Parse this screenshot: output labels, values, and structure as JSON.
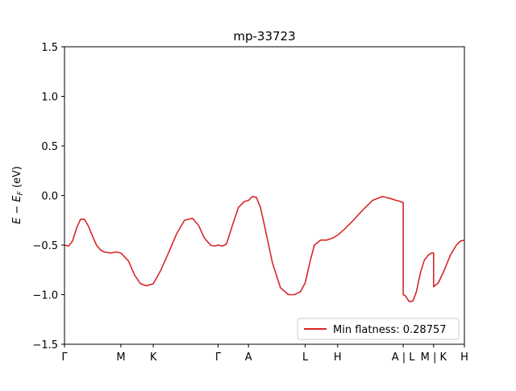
{
  "chart_data": {
    "type": "line",
    "title": "mp-33723",
    "xlabel": "",
    "ylabel": "E − E_F (eV)",
    "ylim": [
      -1.5,
      1.5
    ],
    "yticks": [
      {
        "value": 1.5,
        "label": "1.5"
      },
      {
        "value": 1.0,
        "label": "1.0"
      },
      {
        "value": 0.5,
        "label": "0.5"
      },
      {
        "value": 0.0,
        "label": "0.0"
      },
      {
        "value": -0.5,
        "label": "−0.5"
      },
      {
        "value": -1.0,
        "label": "−1.0"
      },
      {
        "value": -1.5,
        "label": "−1.5"
      }
    ],
    "xlim": [
      0,
      1
    ],
    "xticks": [
      {
        "value": 0.0,
        "label": "Γ"
      },
      {
        "value": 0.141,
        "label": "M"
      },
      {
        "value": 0.222,
        "label": "K"
      },
      {
        "value": 0.384,
        "label": "Γ"
      },
      {
        "value": 0.46,
        "label": "A"
      },
      {
        "value": 0.602,
        "label": "L"
      },
      {
        "value": 0.683,
        "label": "H"
      },
      {
        "value": 0.847,
        "label": "A | L"
      },
      {
        "value": 0.923,
        "label": "M | K"
      },
      {
        "value": 1.0,
        "label": "H"
      }
    ],
    "grid": false,
    "legend": {
      "position": "lower right",
      "entries": [
        "Min flatness: 0.28757"
      ]
    },
    "colors": {
      "series": "#d62728"
    },
    "series": [
      {
        "name": "Min flatness: 0.28757",
        "x": [
          0.0,
          0.01,
          0.02,
          0.03,
          0.04,
          0.05,
          0.06,
          0.07,
          0.08,
          0.09,
          0.1,
          0.115,
          0.13,
          0.141,
          0.16,
          0.175,
          0.19,
          0.205,
          0.222,
          0.24,
          0.26,
          0.28,
          0.3,
          0.32,
          0.335,
          0.35,
          0.365,
          0.375,
          0.384,
          0.395,
          0.405,
          0.42,
          0.435,
          0.45,
          0.46,
          0.47,
          0.48,
          0.49,
          0.5,
          0.52,
          0.54,
          0.56,
          0.575,
          0.59,
          0.602,
          0.615,
          0.625,
          0.64,
          0.655,
          0.67,
          0.683,
          0.7,
          0.72,
          0.745,
          0.77,
          0.795,
          0.815,
          0.83,
          0.84,
          0.845,
          0.847,
          0.847,
          0.852,
          0.857,
          0.862,
          0.867,
          0.872,
          0.88,
          0.89,
          0.9,
          0.91,
          0.918,
          0.923,
          0.923,
          0.935,
          0.95,
          0.965,
          0.98,
          0.99,
          1.0
        ],
        "y": [
          -0.5,
          -0.51,
          -0.46,
          -0.33,
          -0.24,
          -0.24,
          -0.31,
          -0.41,
          -0.5,
          -0.55,
          -0.57,
          -0.58,
          -0.57,
          -0.58,
          -0.66,
          -0.8,
          -0.89,
          -0.91,
          -0.89,
          -0.76,
          -0.58,
          -0.39,
          -0.25,
          -0.23,
          -0.3,
          -0.43,
          -0.5,
          -0.51,
          -0.5,
          -0.51,
          -0.49,
          -0.3,
          -0.12,
          -0.06,
          -0.05,
          -0.01,
          -0.02,
          -0.12,
          -0.3,
          -0.68,
          -0.93,
          -1.0,
          -1.0,
          -0.97,
          -0.88,
          -0.65,
          -0.5,
          -0.45,
          -0.45,
          -0.43,
          -0.4,
          -0.34,
          -0.26,
          -0.15,
          -0.05,
          -0.01,
          -0.03,
          -0.05,
          -0.06,
          -0.07,
          -0.07,
          -1.0,
          -1.01,
          -1.04,
          -1.07,
          -1.07,
          -1.06,
          -0.97,
          -0.78,
          -0.65,
          -0.6,
          -0.58,
          -0.58,
          -0.92,
          -0.88,
          -0.75,
          -0.6,
          -0.5,
          -0.46,
          -0.45
        ]
      }
    ]
  }
}
